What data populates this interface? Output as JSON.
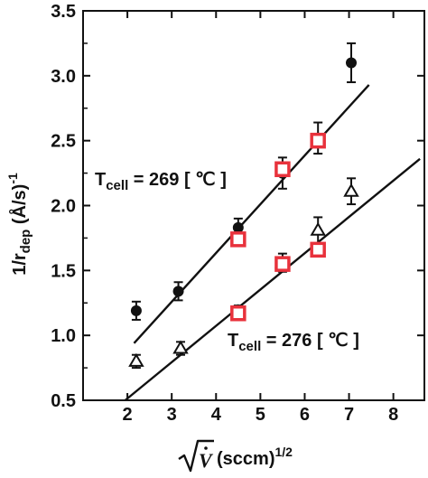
{
  "chart_data": {
    "type": "scatter",
    "xlim": [
      1,
      8.7
    ],
    "ylim": [
      0.5,
      3.5
    ],
    "x_ticks": [
      "2",
      "3",
      "4",
      "5",
      "6",
      "7",
      "8"
    ],
    "y_ticks": [
      "0.5",
      "1.0",
      "1.5",
      "2.0",
      "2.5",
      "3.0",
      "3.5"
    ],
    "ylabel": {
      "main": "1/r",
      "sub": "dep",
      "rest": " (Å/s)",
      "sup": "-1"
    },
    "xlabel": {
      "rest": " (sccm)",
      "sup": "1/2"
    },
    "annotations": [
      {
        "main": "T",
        "sub": "cell",
        "rest": " = 269 [ ℃ ]"
      },
      {
        "main": "T",
        "sub": "cell",
        "rest": " = 276 [ ℃ ]"
      }
    ],
    "series": [
      {
        "marker": "filled-circle",
        "points": [
          {
            "x": 2.2,
            "y": 1.19,
            "err": 0.07
          },
          {
            "x": 3.15,
            "y": 1.34,
            "err": 0.07
          },
          {
            "x": 4.5,
            "y": 1.83,
            "err": 0.07
          },
          {
            "x": 5.5,
            "y": 2.25,
            "err": 0.12
          },
          {
            "x": 6.3,
            "y": 2.52,
            "err": 0.12
          },
          {
            "x": 7.05,
            "y": 3.1,
            "err": 0.15
          }
        ],
        "fit": {
          "x": [
            2.15,
            7.45
          ],
          "y": [
            0.94,
            2.93
          ]
        }
      },
      {
        "marker": "open-triangle",
        "points": [
          {
            "x": 2.2,
            "y": 0.8,
            "err": 0.05
          },
          {
            "x": 3.2,
            "y": 0.9,
            "err": 0.05
          },
          {
            "x": 4.5,
            "y": 1.18,
            "err": 0.05
          },
          {
            "x": 5.5,
            "y": 1.56,
            "err": 0.07
          },
          {
            "x": 6.3,
            "y": 1.81,
            "err": 0.1
          },
          {
            "x": 7.05,
            "y": 2.11,
            "err": 0.1
          }
        ],
        "fit": {
          "x": [
            1.95,
            8.6
          ],
          "y": [
            0.5,
            2.36
          ]
        }
      },
      {
        "marker": "open-square",
        "color": "#e8323c",
        "points": [
          {
            "x": 4.5,
            "y": 1.74
          },
          {
            "x": 5.5,
            "y": 2.28
          },
          {
            "x": 6.3,
            "y": 2.5
          },
          {
            "x": 4.5,
            "y": 1.17
          },
          {
            "x": 5.5,
            "y": 1.55
          },
          {
            "x": 6.3,
            "y": 1.66
          }
        ]
      }
    ]
  }
}
